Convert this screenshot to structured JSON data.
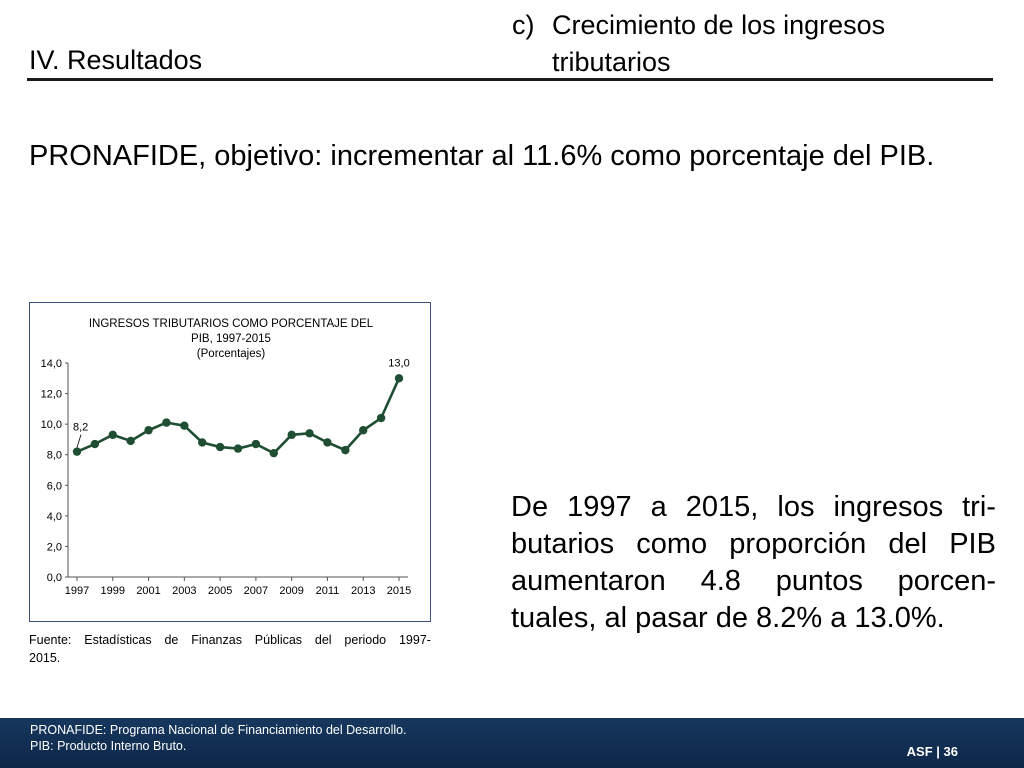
{
  "header": {
    "section_title": "IV. Resultados",
    "subsection_letter": "c)",
    "subsection_line1": "Crecimiento de los ingresos",
    "subsection_line2": "tributarios"
  },
  "objective": "PRONAFIDE, objetivo: incrementar al 11.6% como porcentaje del PIB.",
  "chart_data": {
    "type": "line",
    "title": [
      "INGRESOS TRIBUTARIOS COMO PORCENTAJE DEL",
      "PIB, 1997-2015",
      "(Porcentajes)"
    ],
    "x": [
      1997,
      1998,
      1999,
      2000,
      2001,
      2002,
      2003,
      2004,
      2005,
      2006,
      2007,
      2008,
      2009,
      2010,
      2011,
      2012,
      2013,
      2014,
      2015
    ],
    "series": [
      {
        "values": [
          8.2,
          8.7,
          9.3,
          8.9,
          9.6,
          10.1,
          9.9,
          8.8,
          8.5,
          8.4,
          8.7,
          8.1,
          9.3,
          9.4,
          8.8,
          8.3,
          9.6,
          10.4,
          13.0
        ]
      }
    ],
    "ylim": [
      0,
      14
    ],
    "yticks": [
      "0,0",
      "2,0",
      "4,0",
      "6,0",
      "8,0",
      "10,0",
      "12,0",
      "14,0"
    ],
    "ytick_values": [
      0,
      2,
      4,
      6,
      8,
      10,
      12,
      14
    ],
    "xticks": [
      "1997",
      "1999",
      "2001",
      "2003",
      "2005",
      "2007",
      "2009",
      "2011",
      "2013",
      "2015"
    ],
    "xtick_values": [
      1997,
      1999,
      2001,
      2003,
      2005,
      2007,
      2009,
      2011,
      2013,
      2015
    ],
    "annotations": [
      {
        "x": 1997,
        "label": "8,2"
      },
      {
        "x": 2015,
        "label": "13,0"
      }
    ],
    "line_color": "#1f4e32",
    "grid": false
  },
  "source": {
    "line1_words": [
      "Fuente:",
      "Estadísticas",
      "de",
      "Finanzas",
      "Públicas",
      "del",
      "periodo",
      "1997-"
    ],
    "line2": "2015."
  },
  "conclusion": {
    "lines": [
      [
        "De",
        "1997",
        "a",
        "2015,",
        "los",
        "ingresos",
        "tri-"
      ],
      [
        "butarios",
        "como",
        "proporción",
        "del",
        "PIB"
      ],
      [
        "aumentaron",
        "4.8",
        "puntos",
        "porcen-"
      ],
      [
        "tuales, al pasar de 8.2% a 13.0%."
      ]
    ]
  },
  "footer": {
    "note1": "PRONAFIDE: Programa Nacional de Financiamiento del Desarrollo.",
    "note2": "PIB: Producto Interno Bruto.",
    "page_tag": "ASF | 36",
    "bg_color": "#17375e"
  }
}
